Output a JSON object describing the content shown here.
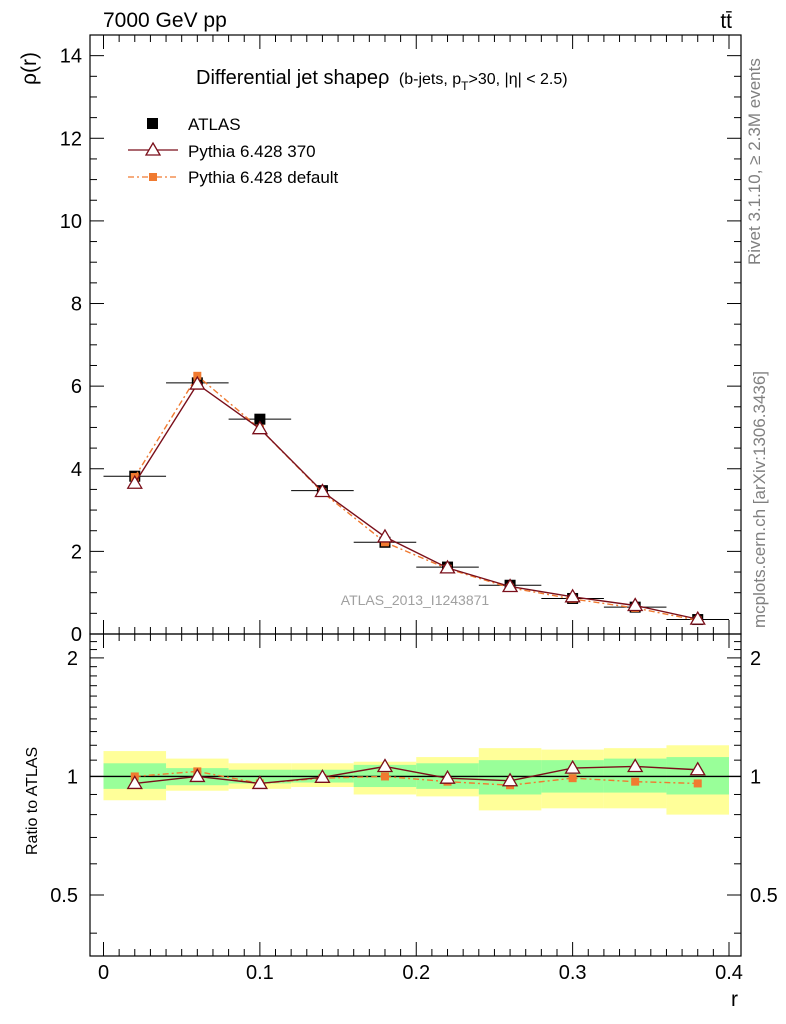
{
  "header": {
    "energy_label": "7000 GeV pp",
    "process_label": "tt̄"
  },
  "side": {
    "rivet_label": "Rivet 3.1.10, ≥ 2.3M events",
    "mcplots_label": "mcplots.cern.ch [arXiv:1306.3436]"
  },
  "chart_data": [
    {
      "type": "scatter",
      "title": "Differential jet shapeρ",
      "title_suffix": "(b-jets, p",
      "title_sub": "T",
      "title_tail": ">30, |η| < 2.5)",
      "ylabel": "ρ(r)",
      "xlabel": "",
      "analysis_label": "ATLAS_2013_I1243871",
      "xlim": [
        0,
        0.4
      ],
      "ylim": [
        0,
        14.5
      ],
      "yticks": [
        0,
        2,
        4,
        6,
        8,
        10,
        12,
        14
      ],
      "legend_position": "top-left",
      "x": [
        0.02,
        0.06,
        0.1,
        0.14,
        0.18,
        0.22,
        0.26,
        0.3,
        0.34,
        0.38
      ],
      "series": [
        {
          "name": "ATLAS",
          "color": "#000000",
          "marker": "square",
          "values": [
            3.82,
            6.08,
            5.2,
            3.47,
            2.22,
            1.62,
            1.18,
            0.86,
            0.65,
            0.35
          ],
          "bin_edges": [
            0,
            0.04,
            0.08,
            0.12,
            0.16,
            0.2,
            0.24,
            0.28,
            0.32,
            0.36,
            0.4
          ]
        },
        {
          "name": "Pythia 6.428 370",
          "color": "#7a0f1a",
          "marker": "triangle",
          "line": "solid",
          "values": [
            3.65,
            6.05,
            4.97,
            3.45,
            2.35,
            1.6,
            1.15,
            0.9,
            0.69,
            0.36
          ]
        },
        {
          "name": "Pythia 6.428 default",
          "color": "#f07a30",
          "marker": "square-small",
          "line": "dashdot",
          "values": [
            3.8,
            6.25,
            4.97,
            3.43,
            2.22,
            1.58,
            1.12,
            0.85,
            0.63,
            0.33
          ]
        }
      ]
    },
    {
      "type": "line",
      "ylabel": "Ratio to ATLAS",
      "xlabel": "r",
      "xlim": [
        0,
        0.4
      ],
      "ylim": [
        0.35,
        2.3
      ],
      "yticks": [
        0.5,
        1,
        2
      ],
      "ytick_labels": [
        "0.5",
        "1",
        "2"
      ],
      "xticks": [
        0,
        0.1,
        0.2,
        0.3,
        0.4
      ],
      "xtick_labels": [
        "0",
        "0.1",
        "0.2",
        "0.3",
        "0.4"
      ],
      "bin_edges": [
        0,
        0.04,
        0.08,
        0.12,
        0.16,
        0.2,
        0.24,
        0.28,
        0.32,
        0.36,
        0.4
      ],
      "band_inner": [
        [
          0.93,
          1.08
        ],
        [
          0.95,
          1.05
        ],
        [
          0.96,
          1.04
        ],
        [
          0.965,
          1.04
        ],
        [
          0.94,
          1.07
        ],
        [
          0.93,
          1.08
        ],
        [
          0.9,
          1.1
        ],
        [
          0.91,
          1.1
        ],
        [
          0.91,
          1.11
        ],
        [
          0.9,
          1.12
        ]
      ],
      "band_outer": [
        [
          0.87,
          1.16
        ],
        [
          0.92,
          1.11
        ],
        [
          0.93,
          1.08
        ],
        [
          0.94,
          1.08
        ],
        [
          0.9,
          1.09
        ],
        [
          0.89,
          1.12
        ],
        [
          0.82,
          1.18
        ],
        [
          0.83,
          1.17
        ],
        [
          0.83,
          1.18
        ],
        [
          0.8,
          1.2
        ]
      ],
      "band_colors": {
        "inner": "#99ff99",
        "outer": "#ffff99"
      },
      "x": [
        0.02,
        0.06,
        0.1,
        0.14,
        0.18,
        0.22,
        0.26,
        0.3,
        0.34,
        0.38
      ],
      "series": [
        {
          "name": "Pythia 6.428 370",
          "color": "#7a0f1a",
          "marker": "triangle",
          "line": "solid",
          "values": [
            0.96,
            1.0,
            0.96,
            0.995,
            1.06,
            0.99,
            0.975,
            1.05,
            1.06,
            1.04
          ]
        },
        {
          "name": "Pythia 6.428 default",
          "color": "#f07a30",
          "marker": "square-small",
          "line": "dashdot",
          "values": [
            1.0,
            1.03,
            0.96,
            0.99,
            1.0,
            0.97,
            0.95,
            0.99,
            0.97,
            0.96
          ]
        }
      ]
    }
  ]
}
